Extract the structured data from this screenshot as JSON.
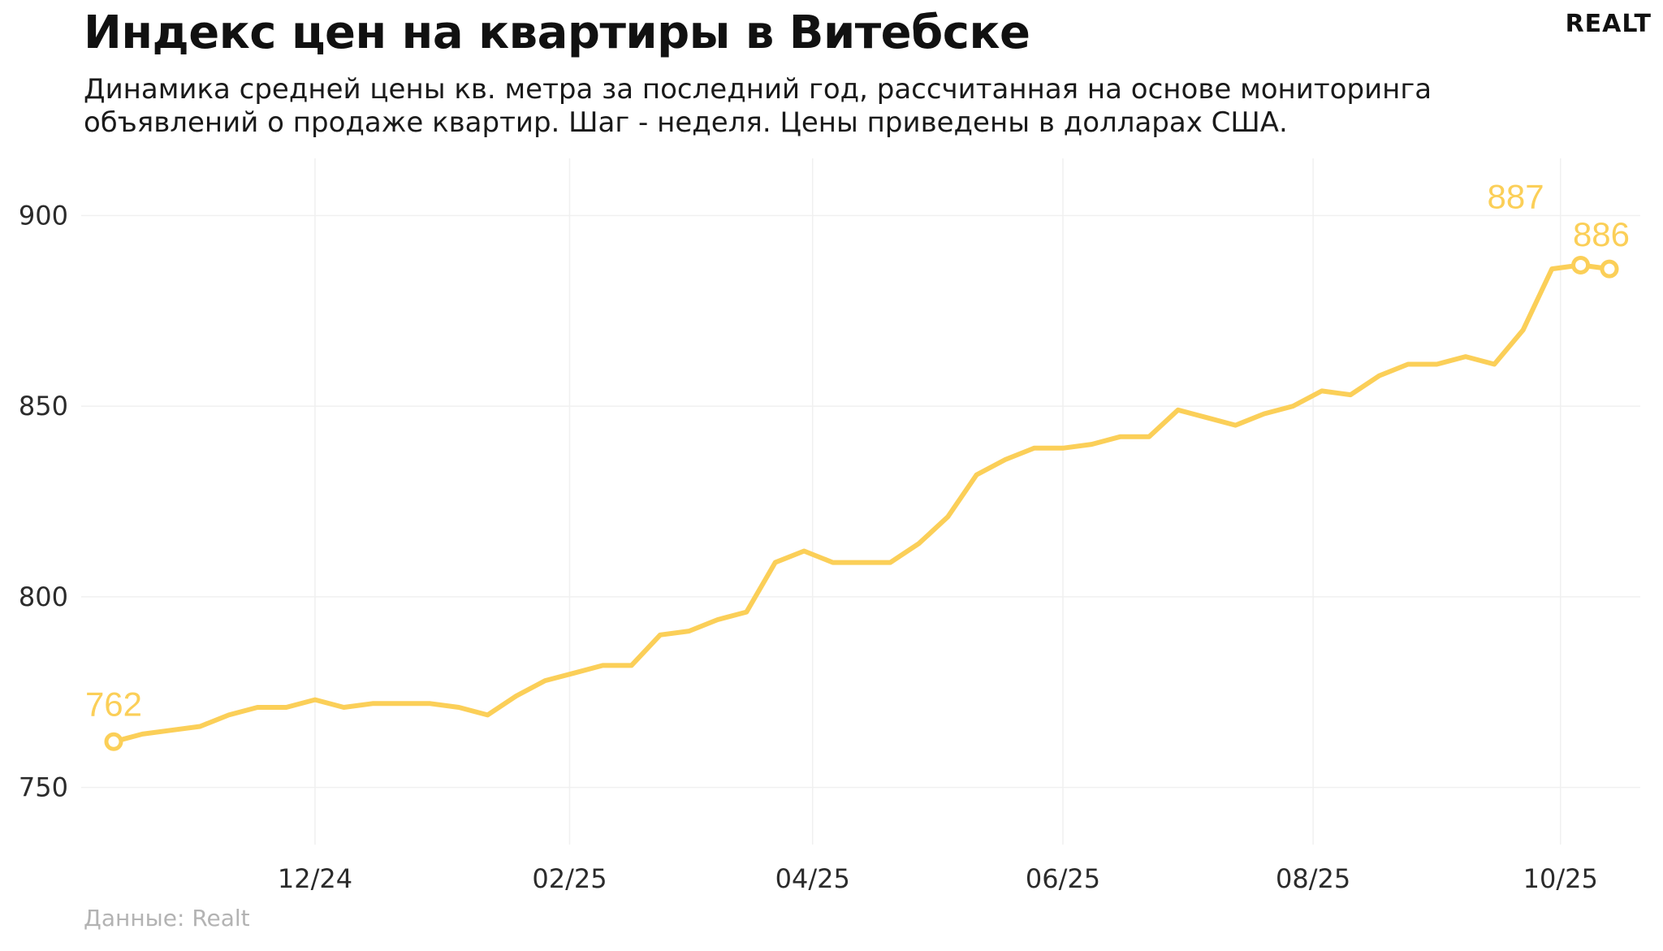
{
  "header": {
    "title": "Индекс цен на квартиры в Витебске",
    "subtitle": "Динамика средней цены кв. метра за последний год, рассчитанная на основе мониторинга объявлений о продаже квартир. Шаг - неделя. Цены приведены в долларах США.",
    "logo": "REALT"
  },
  "footer": {
    "caption": "Данные: Realt"
  },
  "colors": {
    "line": "#fbcf58",
    "grid": "#f0f0f0",
    "text": "#111111",
    "caption": "#b3b3b3"
  },
  "chart_data": {
    "type": "line",
    "title": "Индекс цен на квартиры в Витебске",
    "xlabel": "",
    "ylabel": "",
    "ylim": [
      735,
      915
    ],
    "yticks": [
      750,
      800,
      850,
      900
    ],
    "x_tick_labels": [
      {
        "label": "12/24",
        "index": 7.0
      },
      {
        "label": "02/25",
        "index": 15.85
      },
      {
        "label": "04/25",
        "index": 24.3
      },
      {
        "label": "06/25",
        "index": 33.0
      },
      {
        "label": "08/25",
        "index": 41.7
      },
      {
        "label": "10/25",
        "index": 50.3
      }
    ],
    "grid": true,
    "legend": "none",
    "series": [
      {
        "values": [
          762,
          764,
          765,
          766,
          769,
          771,
          771,
          773,
          771,
          772,
          772,
          772,
          771,
          769,
          774,
          778,
          780,
          782,
          782,
          790,
          791,
          794,
          796,
          809,
          812,
          809,
          809,
          809,
          814,
          821,
          832,
          836,
          839,
          839,
          840,
          842,
          842,
          849,
          847,
          845,
          848,
          850,
          854,
          853,
          858,
          861,
          861,
          863,
          861,
          870,
          886,
          887,
          886
        ]
      }
    ],
    "annotations": [
      {
        "index": 0,
        "value": 762,
        "label": "762"
      },
      {
        "index": 51,
        "value": 887,
        "label": "887"
      },
      {
        "index": 52,
        "value": 886,
        "label": "886"
      }
    ]
  }
}
